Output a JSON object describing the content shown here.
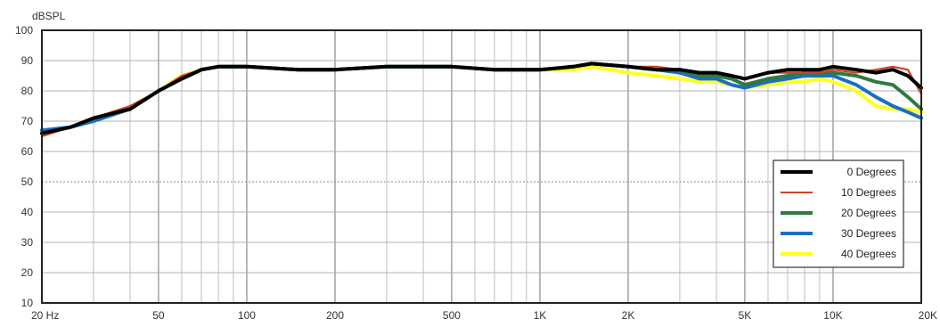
{
  "chart_data": {
    "type": "line",
    "title": "",
    "ylabel": "dBSPL",
    "xlabel": "",
    "x_scale": "log",
    "xlim": [
      20,
      20000
    ],
    "ylim": [
      10,
      100
    ],
    "x_tick_values": [
      20,
      50,
      100,
      200,
      500,
      1000,
      2000,
      5000,
      10000,
      20000
    ],
    "x_tick_labels": [
      "20  Hz",
      "50",
      "100",
      "200",
      "500",
      "1K",
      "2K",
      "5K",
      "10K",
      "20K"
    ],
    "y_ticks": [
      10,
      20,
      30,
      40,
      50,
      60,
      70,
      80,
      90,
      100
    ],
    "grid": true,
    "legend_position": "bottom-right",
    "x": [
      20,
      25,
      30,
      40,
      50,
      60,
      70,
      80,
      100,
      150,
      200,
      300,
      500,
      700,
      1000,
      1300,
      1500,
      2000,
      2500,
      3000,
      3500,
      4000,
      4500,
      5000,
      6000,
      7000,
      8000,
      9000,
      10000,
      12000,
      14000,
      16000,
      18000,
      20000
    ],
    "series": [
      {
        "name": "0 Degrees",
        "color": "#000000",
        "values": [
          66,
          68,
          71,
          74,
          80,
          84,
          87,
          88,
          88,
          87,
          87,
          88,
          88,
          87,
          87,
          88,
          89,
          88,
          87,
          87,
          86,
          86,
          85,
          84,
          86,
          87,
          87,
          87,
          88,
          87,
          86,
          87,
          85,
          81
        ]
      },
      {
        "name": "10 Degrees",
        "color": "#cc4422",
        "values": [
          65,
          68,
          71,
          75,
          80,
          85,
          87,
          88,
          88,
          87,
          87,
          88,
          88,
          87,
          87,
          88,
          89,
          88,
          88,
          87,
          86,
          86,
          85,
          84,
          86,
          86,
          86,
          86,
          87,
          86,
          87,
          88,
          87,
          79
        ]
      },
      {
        "name": "20 Degrees",
        "color": "#2e7a40",
        "values": [
          66,
          68,
          71,
          74,
          80,
          84,
          87,
          88,
          88,
          87,
          87,
          88,
          88,
          87,
          87,
          88,
          89,
          88,
          87,
          87,
          85,
          85,
          84,
          82,
          84,
          85,
          86,
          86,
          86,
          85,
          83,
          82,
          78,
          74
        ]
      },
      {
        "name": "30 Degrees",
        "color": "#1a6fc4",
        "values": [
          67,
          68,
          70,
          74,
          80,
          84,
          87,
          88,
          88,
          87,
          87,
          88,
          88,
          87,
          87,
          88,
          89,
          88,
          87,
          86,
          84,
          84,
          82,
          81,
          83,
          84,
          85,
          85,
          85,
          82,
          78,
          75,
          73,
          71
        ]
      },
      {
        "name": "40 Degrees",
        "color": "#ffff22",
        "values": [
          66,
          68,
          71,
          74,
          80,
          85,
          87,
          88,
          88,
          87,
          87,
          88,
          88,
          87,
          87,
          87,
          88,
          86,
          85,
          84,
          83,
          83,
          82,
          81,
          82,
          83,
          83,
          84,
          83,
          80,
          75,
          74,
          74,
          73
        ]
      }
    ]
  }
}
